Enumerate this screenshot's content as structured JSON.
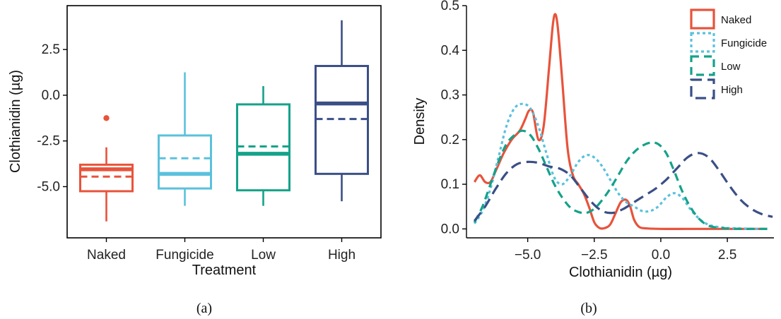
{
  "chart_data": [
    {
      "type": "box",
      "caption": "(a)",
      "xlabel": "Treatment",
      "ylabel": "Clothianidin (µg)",
      "ylim": [
        -7.8,
        4.9
      ],
      "yticks": [
        -5.0,
        -2.5,
        0.0,
        2.5
      ],
      "ytick_labels": [
        "-5.0",
        "-2.5",
        "0.0",
        "2.5"
      ],
      "categories": [
        "Naked",
        "Fungicide",
        "Low",
        "High"
      ],
      "boxes": [
        {
          "name": "Naked",
          "color": "#e8533b",
          "whisker_low": -6.9,
          "q1": -5.25,
          "median": -4.05,
          "q3": -3.8,
          "whisker_high": -2.85,
          "mean": -4.45,
          "outliers": [
            -1.25
          ]
        },
        {
          "name": "Fungicide",
          "color": "#5bc1dc",
          "whisker_low": -6.05,
          "q1": -5.1,
          "median": -4.3,
          "q3": -2.2,
          "whisker_high": 1.25,
          "mean": -3.45,
          "outliers": []
        },
        {
          "name": "Low",
          "color": "#14a28a",
          "whisker_low": -6.05,
          "q1": -5.2,
          "median": -3.2,
          "q3": -0.5,
          "whisker_high": 0.5,
          "mean": -2.8,
          "outliers": []
        },
        {
          "name": "High",
          "color": "#3a4f86",
          "whisker_low": -5.8,
          "q1": -4.3,
          "median": -0.45,
          "q3": 1.6,
          "whisker_high": 4.1,
          "mean": -1.3,
          "outliers": []
        }
      ]
    },
    {
      "type": "line",
      "caption": "(b)",
      "xlabel": "Clothianidin (µg)",
      "ylabel": "Density",
      "xlim": [
        -7.3,
        4.25
      ],
      "ylim": [
        -0.02,
        0.5
      ],
      "xticks": [
        -5.0,
        -2.5,
        0.0,
        2.5
      ],
      "xtick_labels": [
        "−5.0",
        "−2.5",
        "0.0",
        "2.5"
      ],
      "yticks": [
        0.0,
        0.1,
        0.2,
        0.3,
        0.4,
        0.5
      ],
      "ytick_labels": [
        "0.0",
        "0.1",
        "0.2",
        "0.3",
        "0.4",
        "0.5"
      ],
      "legend_position": "top-right",
      "series": [
        {
          "name": "Naked",
          "color": "#e8533b",
          "dash": "solid",
          "x": [
            -7.0,
            -6.8,
            -6.6,
            -6.4,
            -6.2,
            -5.9,
            -5.6,
            -5.3,
            -5.1,
            -4.95,
            -4.8,
            -4.6,
            -4.4,
            -4.2,
            -4.05,
            -3.95,
            -3.85,
            -3.7,
            -3.5,
            -3.3,
            -3.1,
            -2.9,
            -2.7,
            -2.5,
            -2.3,
            -2.1,
            -1.9,
            -1.7,
            -1.5,
            -1.3,
            -1.15,
            -1.0,
            -0.8,
            -0.5,
            0.0,
            1.0,
            2.0,
            3.0,
            4.0
          ],
          "y": [
            0.105,
            0.12,
            0.105,
            0.105,
            0.13,
            0.17,
            0.2,
            0.22,
            0.245,
            0.265,
            0.26,
            0.2,
            0.23,
            0.36,
            0.46,
            0.48,
            0.44,
            0.33,
            0.18,
            0.12,
            0.1,
            0.08,
            0.05,
            0.015,
            0.002,
            0.002,
            0.01,
            0.035,
            0.06,
            0.065,
            0.05,
            0.02,
            0.004,
            0.001,
            0.0,
            0.0,
            0.0,
            0.0,
            0.0
          ]
        },
        {
          "name": "Fungicide",
          "color": "#5bc1dc",
          "dash": "dotted",
          "x": [
            -7.0,
            -6.7,
            -6.4,
            -6.1,
            -5.8,
            -5.5,
            -5.2,
            -4.9,
            -4.6,
            -4.3,
            -4.0,
            -3.7,
            -3.4,
            -3.1,
            -2.8,
            -2.5,
            -2.2,
            -1.9,
            -1.6,
            -1.3,
            -1.0,
            -0.7,
            -0.4,
            -0.1,
            0.2,
            0.5,
            0.8,
            1.1,
            1.4,
            1.7,
            2.0,
            2.5,
            3.0,
            3.5,
            4.0
          ],
          "y": [
            0.012,
            0.04,
            0.09,
            0.16,
            0.23,
            0.27,
            0.28,
            0.27,
            0.23,
            0.17,
            0.115,
            0.1,
            0.12,
            0.15,
            0.165,
            0.16,
            0.14,
            0.11,
            0.08,
            0.06,
            0.05,
            0.04,
            0.04,
            0.05,
            0.07,
            0.08,
            0.07,
            0.045,
            0.025,
            0.012,
            0.006,
            0.002,
            0.001,
            0.0,
            0.0
          ]
        },
        {
          "name": "Low",
          "color": "#14a28a",
          "dash": "dashed",
          "x": [
            -7.0,
            -6.7,
            -6.4,
            -6.1,
            -5.8,
            -5.5,
            -5.2,
            -4.9,
            -4.6,
            -4.3,
            -4.0,
            -3.7,
            -3.4,
            -3.1,
            -2.8,
            -2.5,
            -2.2,
            -1.9,
            -1.6,
            -1.3,
            -1.0,
            -0.7,
            -0.4,
            -0.1,
            0.2,
            0.5,
            0.8,
            1.1,
            1.4,
            1.7,
            2.0,
            2.5,
            3.0,
            3.5,
            4.0
          ],
          "y": [
            0.015,
            0.05,
            0.1,
            0.15,
            0.19,
            0.21,
            0.22,
            0.21,
            0.18,
            0.14,
            0.1,
            0.07,
            0.048,
            0.038,
            0.036,
            0.045,
            0.065,
            0.09,
            0.12,
            0.15,
            0.172,
            0.186,
            0.193,
            0.19,
            0.17,
            0.13,
            0.085,
            0.05,
            0.025,
            0.01,
            0.004,
            0.001,
            0.0,
            0.0,
            0.0
          ]
        },
        {
          "name": "High",
          "color": "#3a4f86",
          "dash": "longdash",
          "x": [
            -7.0,
            -6.6,
            -6.2,
            -5.8,
            -5.4,
            -5.0,
            -4.6,
            -4.2,
            -3.8,
            -3.4,
            -3.0,
            -2.6,
            -2.2,
            -1.8,
            -1.4,
            -1.0,
            -0.6,
            -0.2,
            0.2,
            0.6,
            1.0,
            1.4,
            1.8,
            2.2,
            2.6,
            3.0,
            3.4,
            3.8,
            4.2
          ],
          "y": [
            0.018,
            0.05,
            0.09,
            0.125,
            0.145,
            0.15,
            0.148,
            0.14,
            0.135,
            0.12,
            0.09,
            0.06,
            0.04,
            0.036,
            0.045,
            0.06,
            0.075,
            0.09,
            0.11,
            0.135,
            0.16,
            0.17,
            0.16,
            0.13,
            0.095,
            0.065,
            0.045,
            0.033,
            0.027
          ]
        }
      ]
    }
  ]
}
